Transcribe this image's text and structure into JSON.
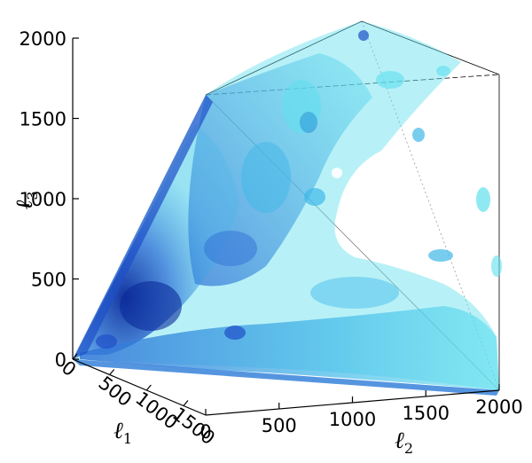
{
  "chart_data": {
    "type": "3d-isosurface",
    "axes": {
      "l1": {
        "label_base": "ℓ",
        "label_sub": "1",
        "ticks": [
          "0",
          "500",
          "1000",
          "1500"
        ]
      },
      "l2": {
        "label_base": "ℓ",
        "label_sub": "2",
        "ticks": [
          "0",
          "500",
          "1000",
          "1500",
          "2000"
        ]
      },
      "l3": {
        "label_base": "ℓ",
        "label_sub": "3",
        "ticks": [
          "0",
          "500",
          "1000",
          "1500",
          "2000"
        ]
      }
    },
    "l2_range": [
      0,
      2000
    ],
    "l3_range": [
      0,
      2000
    ],
    "surface_colors": [
      "#0a2a9a",
      "#2f6fd6",
      "#3fb8e8",
      "#5fe0ee"
    ]
  }
}
